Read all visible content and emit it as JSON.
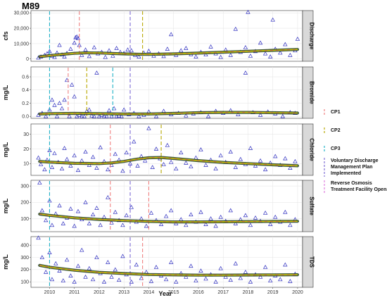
{
  "chart_data": {
    "type": "scatter",
    "title": "M89",
    "xlabel": "Year",
    "x_range": [
      2009.25,
      2020.2
    ],
    "x_ticks": [
      "2010",
      "2011",
      "2012",
      "2013",
      "2014",
      "2015",
      "2016",
      "2017",
      "2018",
      "2019",
      "2020"
    ],
    "grid": true,
    "legend": {
      "placement": "right",
      "entries": [
        {
          "key": "cp1",
          "label": "CP1",
          "color": "#F08080"
        },
        {
          "key": "cp2",
          "label": "CP2",
          "color": "#B8A800"
        },
        {
          "key": "cp3",
          "label": "CP3",
          "color": "#20B2C8"
        },
        {
          "key": "vdmp",
          "label": "Voluntary Discharge Management Plan Implemented",
          "color": "#7E6DD6"
        },
        {
          "key": "ro",
          "label": "Reverse Osmosis Treatment Facility Opens",
          "color": "#E07EE0"
        }
      ]
    },
    "panels": [
      {
        "strip": "Discharge",
        "ylabel": "cfs",
        "ylim": [
          -1500,
          31500
        ],
        "yticks": [
          0,
          10000,
          20000,
          30000
        ],
        "ytick_labels": [
          "0",
          "10,000",
          "20,000",
          "30,000"
        ],
        "events": [
          {
            "key": "cp3",
            "x": 2010.0
          },
          {
            "key": "cp1",
            "x": 2011.2
          },
          {
            "key": "vdmp",
            "x": 2013.25
          },
          {
            "key": "cp2",
            "x": 2013.75
          }
        ],
        "trend": {
          "x": [
            2009.6,
            2010.0,
            2010.5,
            2011.0,
            2011.5,
            2012.0,
            2012.5,
            2013.0,
            2013.5,
            2014.0,
            2015.0,
            2016.0,
            2017.0,
            2018.0,
            2019.0,
            2020.0
          ],
          "y": [
            1500,
            2200,
            3000,
            3700,
            4000,
            3900,
            3600,
            3300,
            3100,
            3000,
            3300,
            3800,
            4400,
            5000,
            5600,
            6200
          ]
        },
        "points": {
          "x": [
            2009.55,
            2009.65,
            2009.8,
            2009.9,
            2010.0,
            2010.1,
            2010.2,
            2010.3,
            2010.4,
            2010.5,
            2010.6,
            2010.7,
            2010.85,
            2011.0,
            2011.05,
            2011.1,
            2011.15,
            2011.2,
            2011.3,
            2011.45,
            2011.6,
            2011.8,
            2011.95,
            2012.1,
            2012.25,
            2012.4,
            2012.55,
            2012.7,
            2012.85,
            2013.0,
            2013.15,
            2013.3,
            2013.45,
            2013.6,
            2013.8,
            2014.0,
            2014.2,
            2014.4,
            2014.6,
            2014.75,
            2014.9,
            2015.1,
            2015.3,
            2015.5,
            2015.7,
            2015.9,
            2016.1,
            2016.3,
            2016.5,
            2016.7,
            2016.9,
            2017.1,
            2017.3,
            2017.5,
            2017.7,
            2017.9,
            2018.0,
            2018.1,
            2018.3,
            2018.5,
            2018.7,
            2018.9,
            2019.0,
            2019.1,
            2019.3,
            2019.5,
            2019.7,
            2019.9,
            2020.0
          ],
          "y": [
            800,
            1500,
            2500,
            3500,
            5000,
            2000,
            1200,
            4000,
            9000,
            2800,
            1500,
            3800,
            6500,
            10500,
            14000,
            14500,
            13500,
            9000,
            2500,
            6000,
            1800,
            7500,
            3500,
            4500,
            1200,
            5500,
            2000,
            7000,
            4500,
            3800,
            6000,
            5500,
            2500,
            1500,
            4000,
            5200,
            2000,
            3500,
            1800,
            6500,
            16000,
            2500,
            5500,
            7000,
            3000,
            1500,
            4500,
            2800,
            8000,
            3500,
            1200,
            6000,
            2500,
            19500,
            4500,
            7500,
            30500,
            2000,
            5000,
            10500,
            3500,
            1500,
            25500,
            6500,
            4000,
            9500,
            2500,
            5500,
            13000
          ]
        }
      },
      {
        "strip": "Bromide",
        "ylabel": "mg/L",
        "ylim": [
          -0.03,
          0.75
        ],
        "yticks": [
          0.0,
          0.2,
          0.4,
          0.6
        ],
        "ytick_labels": [
          "0.0",
          "0.2",
          "0.4",
          "0.6"
        ],
        "events": [
          {
            "key": "cp3",
            "x": 2010.0
          },
          {
            "key": "cp1",
            "x": 2010.75
          },
          {
            "key": "cp2",
            "x": 2011.5
          },
          {
            "key": "cp3",
            "x": 2012.55
          },
          {
            "key": "vdmp",
            "x": 2013.25
          }
        ],
        "trend": {
          "x": [
            2009.6,
            2010.0,
            2011.0,
            2012.0,
            2013.0,
            2014.0,
            2015.0,
            2016.0,
            2017.0,
            2018.0,
            2019.0,
            2020.0
          ],
          "y": [
            0.035,
            0.04,
            0.045,
            0.04,
            0.035,
            0.035,
            0.045,
            0.055,
            0.06,
            0.06,
            0.055,
            0.05
          ]
        },
        "points": {
          "x": [
            2009.55,
            2009.7,
            2009.85,
            2010.0,
            2010.1,
            2010.2,
            2010.3,
            2010.4,
            2010.5,
            2010.6,
            2010.7,
            2010.8,
            2010.9,
            2011.0,
            2011.1,
            2011.2,
            2011.3,
            2011.4,
            2011.5,
            2011.6,
            2011.7,
            2011.8,
            2011.9,
            2012.0,
            2012.1,
            2012.2,
            2012.3,
            2012.4,
            2012.5,
            2012.6,
            2012.7,
            2012.8,
            2012.9,
            2013.0,
            2013.2,
            2013.4,
            2013.6,
            2013.8,
            2014.0,
            2014.3,
            2014.6,
            2014.9,
            2015.2,
            2015.5,
            2015.8,
            2016.1,
            2016.4,
            2016.7,
            2017.0,
            2017.3,
            2017.6,
            2017.9,
            2018.2,
            2018.5,
            2018.8,
            2019.1,
            2019.4,
            2019.7,
            2019.9
          ],
          "y": [
            0.02,
            0.05,
            0.0,
            0.1,
            0.25,
            0.17,
            0.0,
            0.2,
            0.12,
            0.25,
            0.55,
            0.0,
            0.48,
            0.3,
            0.0,
            0.02,
            0.0,
            0.0,
            0.08,
            0.1,
            0.01,
            0.0,
            0.66,
            0.0,
            0.02,
            0.0,
            0.0,
            0.09,
            0.0,
            0.12,
            0.0,
            0.01,
            0.0,
            0.1,
            0.03,
            0.05,
            0.0,
            0.02,
            0.07,
            0.0,
            0.08,
            0.03,
            0.05,
            0.01,
            0.04,
            0.06,
            0.0,
            0.08,
            0.05,
            0.09,
            0.03,
            0.66,
            0.06,
            0.02,
            0.07,
            0.04,
            0.0,
            0.06,
            0.05
          ]
        }
      },
      {
        "strip": "Chloride",
        "ylabel": "mg/L",
        "ylim": [
          2.0,
          37.0
        ],
        "yticks": [
          10,
          20,
          30
        ],
        "ytick_labels": [
          "10",
          "20",
          "30"
        ],
        "events": [
          {
            "key": "cp3",
            "x": 2010.0
          },
          {
            "key": "cp1",
            "x": 2012.45
          },
          {
            "key": "vdmp",
            "x": 2013.25
          },
          {
            "key": "cp2",
            "x": 2014.5
          }
        ],
        "trend": {
          "x": [
            2009.6,
            2010.0,
            2011.0,
            2012.0,
            2012.5,
            2013.0,
            2013.5,
            2014.0,
            2014.5,
            2015.0,
            2016.0,
            2017.0,
            2018.0,
            2019.0,
            2020.0
          ],
          "y": [
            11.5,
            11.0,
            10.2,
            10.0,
            10.5,
            11.5,
            13.0,
            14.0,
            14.2,
            13.5,
            12.0,
            10.8,
            10.0,
            9.2,
            8.5
          ]
        },
        "points": {
          "x": [
            2009.55,
            2009.65,
            2009.8,
            2009.9,
            2010.0,
            2010.1,
            2010.2,
            2010.35,
            2010.5,
            2010.6,
            2010.7,
            2010.85,
            2011.0,
            2011.15,
            2011.3,
            2011.45,
            2011.6,
            2011.75,
            2011.9,
            2012.05,
            2012.2,
            2012.35,
            2012.5,
            2012.65,
            2012.8,
            2012.95,
            2013.1,
            2013.25,
            2013.4,
            2013.55,
            2013.7,
            2013.85,
            2014.0,
            2014.15,
            2014.3,
            2014.45,
            2014.6,
            2014.75,
            2014.9,
            2015.1,
            2015.3,
            2015.5,
            2015.7,
            2015.9,
            2016.1,
            2016.3,
            2016.5,
            2016.7,
            2016.9,
            2017.1,
            2017.3,
            2017.5,
            2017.7,
            2017.9,
            2018.1,
            2018.3,
            2018.5,
            2018.7,
            2018.9,
            2019.1,
            2019.3,
            2019.5,
            2019.7,
            2019.9
          ],
          "y": [
            14.0,
            9.5,
            6.0,
            12.5,
            19.0,
            7.5,
            17.0,
            11.0,
            6.5,
            20.5,
            13.0,
            8.5,
            15.5,
            5.5,
            12.0,
            18.0,
            9.0,
            14.5,
            7.0,
            21.0,
            11.5,
            6.0,
            9.0,
            16.5,
            12.5,
            5.0,
            17.5,
            10.0,
            25.0,
            8.5,
            15.0,
            12.0,
            34.0,
            7.5,
            20.0,
            13.5,
            9.5,
            22.5,
            11.0,
            6.5,
            17.5,
            10.5,
            8.0,
            14.0,
            19.5,
            9.0,
            12.5,
            6.5,
            15.5,
            11.0,
            18.0,
            7.5,
            13.0,
            9.5,
            20.5,
            8.5,
            12.0,
            6.0,
            10.5,
            15.0,
            9.0,
            13.5,
            7.0,
            11.5
          ]
        }
      },
      {
        "strip": "Sulfate",
        "ylabel": "mg/L",
        "ylim": [
          20,
          335
        ],
        "yticks": [
          100,
          200,
          300
        ],
        "ytick_labels": [
          "100",
          "200",
          "300"
        ],
        "events": [
          {
            "key": "cp3",
            "x": 2010.0
          },
          {
            "key": "cp1",
            "x": 2012.45
          },
          {
            "key": "vdmp",
            "x": 2013.25
          },
          {
            "key": "cp1",
            "x": 2014.0
          }
        ],
        "trend": {
          "x": [
            2009.6,
            2010.0,
            2011.0,
            2012.0,
            2013.0,
            2014.0,
            2015.0,
            2016.0,
            2017.0,
            2018.0,
            2019.0,
            2020.0
          ],
          "y": [
            128,
            120,
            105,
            95,
            88,
            83,
            80,
            80,
            81,
            82,
            83,
            84
          ]
        },
        "points": {
          "x": [
            2009.6,
            2009.7,
            2009.85,
            2010.0,
            2010.1,
            2010.25,
            2010.4,
            2010.55,
            2010.7,
            2010.85,
            2011.0,
            2011.15,
            2011.3,
            2011.45,
            2011.6,
            2011.75,
            2011.9,
            2012.05,
            2012.2,
            2012.35,
            2012.5,
            2012.65,
            2012.8,
            2012.95,
            2013.1,
            2013.3,
            2013.5,
            2013.7,
            2013.9,
            2014.1,
            2014.3,
            2014.5,
            2014.7,
            2014.9,
            2015.1,
            2015.3,
            2015.5,
            2015.7,
            2015.9,
            2016.1,
            2016.3,
            2016.5,
            2016.7,
            2016.9,
            2017.1,
            2017.3,
            2017.5,
            2017.7,
            2017.9,
            2018.1,
            2018.3,
            2018.5,
            2018.7,
            2018.9,
            2019.1,
            2019.3,
            2019.5,
            2019.7,
            2019.9
          ],
          "y": [
            320,
            150,
            90,
            210,
            60,
            130,
            180,
            70,
            105,
            160,
            55,
            145,
            95,
            200,
            70,
            125,
            165,
            60,
            110,
            230,
            75,
            140,
            90,
            60,
            120,
            170,
            80,
            100,
            55,
            135,
            90,
            65,
            115,
            150,
            70,
            95,
            60,
            125,
            80,
            140,
            65,
            100,
            55,
            110,
            85,
            150,
            70,
            95,
            120,
            60,
            105,
            85,
            135,
            65,
            110,
            80,
            140,
            60,
            95
          ]
        }
      },
      {
        "strip": "TDS",
        "ylabel": "mg/L",
        "ylim": [
          55,
          470
        ],
        "yticks": [
          100,
          200,
          300,
          400
        ],
        "ytick_labels": [
          "100",
          "200",
          "300",
          "400"
        ],
        "events": [
          {
            "key": "cp3",
            "x": 2010.0
          },
          {
            "key": "vdmp",
            "x": 2013.25
          },
          {
            "key": "cp1",
            "x": 2013.75
          }
        ],
        "trend": {
          "x": [
            2009.6,
            2010.0,
            2011.0,
            2012.0,
            2013.0,
            2014.0,
            2015.0,
            2016.0,
            2017.0,
            2018.0,
            2019.0,
            2020.0
          ],
          "y": [
            235,
            220,
            195,
            178,
            168,
            160,
            157,
            155,
            155,
            156,
            157,
            158
          ]
        },
        "points": {
          "x": [
            2009.55,
            2009.7,
            2009.85,
            2010.0,
            2010.1,
            2010.25,
            2010.4,
            2010.55,
            2010.7,
            2010.85,
            2011.0,
            2011.15,
            2011.3,
            2011.45,
            2011.6,
            2011.75,
            2011.9,
            2012.05,
            2012.2,
            2012.35,
            2012.5,
            2012.65,
            2012.8,
            2012.95,
            2013.1,
            2013.3,
            2013.5,
            2013.7,
            2013.9,
            2014.1,
            2014.3,
            2014.5,
            2014.7,
            2014.9,
            2015.1,
            2015.3,
            2015.5,
            2015.7,
            2015.9,
            2016.1,
            2016.3,
            2016.5,
            2016.7,
            2016.9,
            2017.1,
            2017.3,
            2017.5,
            2017.7,
            2017.9,
            2018.1,
            2018.3,
            2018.5,
            2018.7,
            2018.9,
            2019.1,
            2019.3,
            2019.5,
            2019.7,
            2019.9
          ],
          "y": [
            460,
            300,
            180,
            340,
            120,
            250,
            190,
            110,
            280,
            150,
            100,
            230,
            360,
            140,
            210,
            120,
            300,
            170,
            100,
            260,
            140,
            200,
            115,
            310,
            160,
            100,
            240,
            130,
            180,
            105,
            220,
            150,
            120,
            260,
            100,
            170,
            140,
            230,
            110,
            190,
            125,
            160,
            100,
            210,
            140,
            115,
            250,
            130,
            180,
            100,
            160,
            140,
            220,
            110,
            150,
            120,
            240,
            105,
            165
          ]
        }
      }
    ]
  }
}
